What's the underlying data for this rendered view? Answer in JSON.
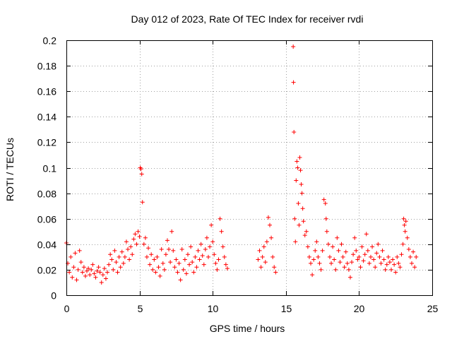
{
  "chart_data": {
    "type": "scatter",
    "title": "Day 012 of 2023, Rate Of TEC Index for receiver rvdi",
    "xlabel": "GPS time / hours",
    "ylabel": "ROTI / TECUs",
    "xlim": [
      0,
      25
    ],
    "ylim": [
      0,
      0.2
    ],
    "grid": true,
    "marker": "plus",
    "color": "#ff0000",
    "x_ticks": [
      {
        "value": 0,
        "label": "0"
      },
      {
        "value": 5,
        "label": "5"
      },
      {
        "value": 10,
        "label": "10"
      },
      {
        "value": 15,
        "label": "15"
      },
      {
        "value": 20,
        "label": "20"
      },
      {
        "value": 25,
        "label": "25"
      }
    ],
    "y_ticks": [
      {
        "value": 0,
        "label": "0"
      },
      {
        "value": 0.02,
        "label": "0.02"
      },
      {
        "value": 0.04,
        "label": "0.04"
      },
      {
        "value": 0.06,
        "label": "0.06"
      },
      {
        "value": 0.08,
        "label": "0.08"
      },
      {
        "value": 0.1,
        "label": "0.1"
      },
      {
        "value": 0.12,
        "label": "0.12"
      },
      {
        "value": 0.14,
        "label": "0.14"
      },
      {
        "value": 0.16,
        "label": "0.16"
      },
      {
        "value": 0.18,
        "label": "0.18"
      },
      {
        "value": 0.2,
        "label": "0.2"
      }
    ],
    "points": [
      [
        0.0,
        0.041
      ],
      [
        0.1,
        0.025
      ],
      [
        0.2,
        0.018
      ],
      [
        0.3,
        0.03
      ],
      [
        0.4,
        0.014
      ],
      [
        0.5,
        0.022
      ],
      [
        0.6,
        0.033
      ],
      [
        0.7,
        0.012
      ],
      [
        0.8,
        0.02
      ],
      [
        0.9,
        0.035
      ],
      [
        1.0,
        0.026
      ],
      [
        1.1,
        0.018
      ],
      [
        1.2,
        0.022
      ],
      [
        1.3,
        0.015
      ],
      [
        1.4,
        0.019
      ],
      [
        1.5,
        0.021
      ],
      [
        1.6,
        0.016
      ],
      [
        1.7,
        0.02
      ],
      [
        1.8,
        0.024
      ],
      [
        1.9,
        0.017
      ],
      [
        2.0,
        0.014
      ],
      [
        2.1,
        0.019
      ],
      [
        2.2,
        0.022
      ],
      [
        2.3,
        0.018
      ],
      [
        2.4,
        0.01
      ],
      [
        2.5,
        0.016
      ],
      [
        2.6,
        0.021
      ],
      [
        2.7,
        0.013
      ],
      [
        2.8,
        0.018
      ],
      [
        2.9,
        0.024
      ],
      [
        3.0,
        0.032
      ],
      [
        3.1,
        0.028
      ],
      [
        3.2,
        0.02
      ],
      [
        3.3,
        0.035
      ],
      [
        3.4,
        0.026
      ],
      [
        3.5,
        0.018
      ],
      [
        3.6,
        0.03
      ],
      [
        3.7,
        0.022
      ],
      [
        3.8,
        0.034
      ],
      [
        3.9,
        0.025
      ],
      [
        4.0,
        0.03
      ],
      [
        4.1,
        0.042
      ],
      [
        4.2,
        0.036
      ],
      [
        4.3,
        0.028
      ],
      [
        4.4,
        0.038
      ],
      [
        4.5,
        0.032
      ],
      [
        4.6,
        0.044
      ],
      [
        4.7,
        0.048
      ],
      [
        4.8,
        0.04
      ],
      [
        4.9,
        0.05
      ],
      [
        5.0,
        0.046
      ],
      [
        5.05,
        0.1
      ],
      [
        5.1,
        0.099
      ],
      [
        5.15,
        0.095
      ],
      [
        5.2,
        0.073
      ],
      [
        5.3,
        0.04
      ],
      [
        5.4,
        0.045
      ],
      [
        5.5,
        0.03
      ],
      [
        5.6,
        0.037
      ],
      [
        5.7,
        0.024
      ],
      [
        5.8,
        0.032
      ],
      [
        5.9,
        0.02
      ],
      [
        6.0,
        0.028
      ],
      [
        6.1,
        0.018
      ],
      [
        6.2,
        0.03
      ],
      [
        6.3,
        0.022
      ],
      [
        6.4,
        0.015
      ],
      [
        6.5,
        0.036
      ],
      [
        6.6,
        0.025
      ],
      [
        6.7,
        0.02
      ],
      [
        6.8,
        0.032
      ],
      [
        6.9,
        0.043
      ],
      [
        7.0,
        0.036
      ],
      [
        7.1,
        0.026
      ],
      [
        7.2,
        0.05
      ],
      [
        7.3,
        0.035
      ],
      [
        7.4,
        0.022
      ],
      [
        7.5,
        0.028
      ],
      [
        7.6,
        0.018
      ],
      [
        7.7,
        0.025
      ],
      [
        7.8,
        0.012
      ],
      [
        7.9,
        0.036
      ],
      [
        8.0,
        0.02
      ],
      [
        8.1,
        0.028
      ],
      [
        8.2,
        0.017
      ],
      [
        8.3,
        0.032
      ],
      [
        8.4,
        0.024
      ],
      [
        8.5,
        0.038
      ],
      [
        8.6,
        0.026
      ],
      [
        8.7,
        0.018
      ],
      [
        8.8,
        0.03
      ],
      [
        8.9,
        0.022
      ],
      [
        9.0,
        0.035
      ],
      [
        9.1,
        0.028
      ],
      [
        9.2,
        0.04
      ],
      [
        9.3,
        0.031
      ],
      [
        9.4,
        0.024
      ],
      [
        9.5,
        0.036
      ],
      [
        9.6,
        0.045
      ],
      [
        9.7,
        0.03
      ],
      [
        9.8,
        0.038
      ],
      [
        9.9,
        0.055
      ],
      [
        10.0,
        0.042
      ],
      [
        10.1,
        0.032
      ],
      [
        10.2,
        0.025
      ],
      [
        10.3,
        0.02
      ],
      [
        10.4,
        0.028
      ],
      [
        10.5,
        0.06
      ],
      [
        10.6,
        0.05
      ],
      [
        10.7,
        0.038
      ],
      [
        10.8,
        0.03
      ],
      [
        10.9,
        0.024
      ],
      [
        11.0,
        0.021
      ],
      [
        13.1,
        0.028
      ],
      [
        13.2,
        0.035
      ],
      [
        13.3,
        0.022
      ],
      [
        13.4,
        0.03
      ],
      [
        13.5,
        0.038
      ],
      [
        13.6,
        0.026
      ],
      [
        13.7,
        0.042
      ],
      [
        13.8,
        0.061
      ],
      [
        13.9,
        0.055
      ],
      [
        14.0,
        0.045
      ],
      [
        14.1,
        0.03
      ],
      [
        14.2,
        0.022
      ],
      [
        14.3,
        0.018
      ],
      [
        15.5,
        0.195
      ],
      [
        15.52,
        0.167
      ],
      [
        15.55,
        0.128
      ],
      [
        15.6,
        0.06
      ],
      [
        15.65,
        0.042
      ],
      [
        15.7,
        0.09
      ],
      [
        15.75,
        0.105
      ],
      [
        15.8,
        0.1
      ],
      [
        15.85,
        0.072
      ],
      [
        15.9,
        0.055
      ],
      [
        15.95,
        0.108
      ],
      [
        16.0,
        0.098
      ],
      [
        16.05,
        0.087
      ],
      [
        16.1,
        0.08
      ],
      [
        16.15,
        0.068
      ],
      [
        16.2,
        0.058
      ],
      [
        16.3,
        0.047
      ],
      [
        16.4,
        0.05
      ],
      [
        16.5,
        0.038
      ],
      [
        16.6,
        0.03
      ],
      [
        16.7,
        0.025
      ],
      [
        16.8,
        0.016
      ],
      [
        16.9,
        0.028
      ],
      [
        17.0,
        0.035
      ],
      [
        17.1,
        0.042
      ],
      [
        17.2,
        0.03
      ],
      [
        17.3,
        0.025
      ],
      [
        17.4,
        0.02
      ],
      [
        17.5,
        0.035
      ],
      [
        17.6,
        0.075
      ],
      [
        17.7,
        0.072
      ],
      [
        17.75,
        0.06
      ],
      [
        17.8,
        0.05
      ],
      [
        17.9,
        0.04
      ],
      [
        18.0,
        0.03
      ],
      [
        18.1,
        0.025
      ],
      [
        18.2,
        0.038
      ],
      [
        18.3,
        0.028
      ],
      [
        18.4,
        0.02
      ],
      [
        18.5,
        0.045
      ],
      [
        18.6,
        0.035
      ],
      [
        18.7,
        0.026
      ],
      [
        18.8,
        0.04
      ],
      [
        18.9,
        0.03
      ],
      [
        19.0,
        0.022
      ],
      [
        19.1,
        0.034
      ],
      [
        19.2,
        0.025
      ],
      [
        19.3,
        0.02
      ],
      [
        19.4,
        0.014
      ],
      [
        19.5,
        0.026
      ],
      [
        19.6,
        0.032
      ],
      [
        19.7,
        0.045
      ],
      [
        19.8,
        0.035
      ],
      [
        19.9,
        0.028
      ],
      [
        20.0,
        0.03
      ],
      [
        20.1,
        0.022
      ],
      [
        20.2,
        0.038
      ],
      [
        20.3,
        0.027
      ],
      [
        20.4,
        0.032
      ],
      [
        20.5,
        0.048
      ],
      [
        20.6,
        0.035
      ],
      [
        20.7,
        0.025
      ],
      [
        20.8,
        0.03
      ],
      [
        20.9,
        0.038
      ],
      [
        21.0,
        0.028
      ],
      [
        21.1,
        0.022
      ],
      [
        21.2,
        0.033
      ],
      [
        21.3,
        0.04
      ],
      [
        21.4,
        0.03
      ],
      [
        21.5,
        0.025
      ],
      [
        21.6,
        0.035
      ],
      [
        21.7,
        0.028
      ],
      [
        21.8,
        0.02
      ],
      [
        21.9,
        0.024
      ],
      [
        22.0,
        0.03
      ],
      [
        22.1,
        0.026
      ],
      [
        22.2,
        0.02
      ],
      [
        22.3,
        0.028
      ],
      [
        22.4,
        0.024
      ],
      [
        22.5,
        0.018
      ],
      [
        22.6,
        0.03
      ],
      [
        22.7,
        0.025
      ],
      [
        22.8,
        0.022
      ],
      [
        22.9,
        0.032
      ],
      [
        23.0,
        0.04
      ],
      [
        23.05,
        0.06
      ],
      [
        23.1,
        0.055
      ],
      [
        23.15,
        0.05
      ],
      [
        23.2,
        0.058
      ],
      [
        23.3,
        0.045
      ],
      [
        23.4,
        0.036
      ],
      [
        23.5,
        0.03
      ],
      [
        23.6,
        0.025
      ],
      [
        23.7,
        0.034
      ],
      [
        23.8,
        0.022
      ],
      [
        23.9,
        0.03
      ]
    ]
  }
}
